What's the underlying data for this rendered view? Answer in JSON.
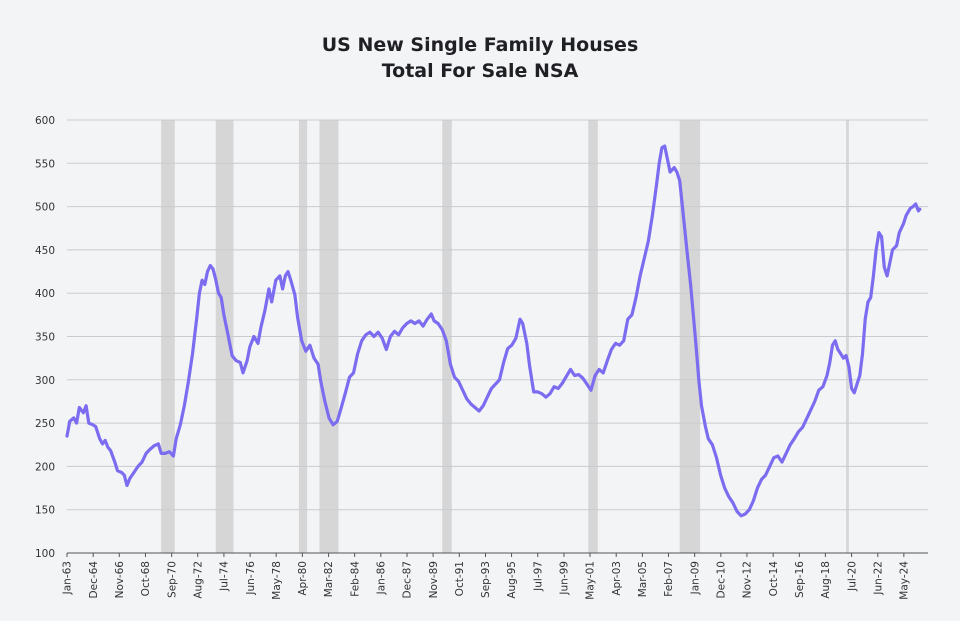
{
  "chart_data": {
    "type": "line",
    "title": [
      "US New Single Family Houses",
      "Total For Sale NSA"
    ],
    "xlabel": "",
    "ylabel": "",
    "ylim": [
      100,
      600
    ],
    "yticks": [
      100,
      150,
      200,
      250,
      300,
      350,
      400,
      450,
      500,
      550,
      600
    ],
    "xlim": [
      1963.0,
      2026.1
    ],
    "xticks": [
      {
        "label": "Jan-63",
        "t": 1963.0
      },
      {
        "label": "Dec-64",
        "t": 1964.92
      },
      {
        "label": "Nov-66",
        "t": 1966.83
      },
      {
        "label": "Oct-68",
        "t": 1968.75
      },
      {
        "label": "Sep-70",
        "t": 1970.67
      },
      {
        "label": "Aug-72",
        "t": 1972.58
      },
      {
        "label": "Jul-74",
        "t": 1974.5
      },
      {
        "label": "Jun-76",
        "t": 1976.42
      },
      {
        "label": "May-78",
        "t": 1978.33
      },
      {
        "label": "Apr-80",
        "t": 1980.25
      },
      {
        "label": "Mar-82",
        "t": 1982.17
      },
      {
        "label": "Feb-84",
        "t": 1984.08
      },
      {
        "label": "Jan-86",
        "t": 1986.0
      },
      {
        "label": "Dec-87",
        "t": 1987.92
      },
      {
        "label": "Nov-89",
        "t": 1989.83
      },
      {
        "label": "Oct-91",
        "t": 1991.75
      },
      {
        "label": "Sep-93",
        "t": 1993.67
      },
      {
        "label": "Aug-95",
        "t": 1995.58
      },
      {
        "label": "Jul-97",
        "t": 1997.5
      },
      {
        "label": "Jun-99",
        "t": 1999.42
      },
      {
        "label": "May-01",
        "t": 2001.33
      },
      {
        "label": "Apr-03",
        "t": 2003.25
      },
      {
        "label": "Mar-05",
        "t": 2005.17
      },
      {
        "label": "Feb-07",
        "t": 2007.08
      },
      {
        "label": "Jan-09",
        "t": 2009.0
      },
      {
        "label": "Dec-10",
        "t": 2010.92
      },
      {
        "label": "Nov-12",
        "t": 2012.83
      },
      {
        "label": "Oct-14",
        "t": 2014.75
      },
      {
        "label": "Sep-16",
        "t": 2016.67
      },
      {
        "label": "Aug-18",
        "t": 2018.58
      },
      {
        "label": "Jul-20",
        "t": 2020.5
      },
      {
        "label": "Jun-22",
        "t": 2022.42
      },
      {
        "label": "May-24",
        "t": 2024.33
      }
    ],
    "recessions": [
      [
        1969.9,
        1970.9
      ],
      [
        1973.9,
        1975.2
      ],
      [
        1980.0,
        1980.6
      ],
      [
        1981.5,
        1982.9
      ],
      [
        1990.5,
        1991.2
      ],
      [
        2001.2,
        2001.9
      ],
      [
        2007.9,
        2009.4
      ],
      [
        2020.1,
        2020.3
      ]
    ],
    "grid": true,
    "legend": "none",
    "series": [
      {
        "color": "#7b6cf0",
        "points": [
          [
            1963.0,
            235
          ],
          [
            1963.2,
            252
          ],
          [
            1963.5,
            256
          ],
          [
            1963.7,
            250
          ],
          [
            1963.9,
            268
          ],
          [
            1964.2,
            262
          ],
          [
            1964.4,
            270
          ],
          [
            1964.6,
            250
          ],
          [
            1964.9,
            248
          ],
          [
            1965.1,
            246
          ],
          [
            1965.4,
            232
          ],
          [
            1965.6,
            226
          ],
          [
            1965.8,
            230
          ],
          [
            1966.0,
            222
          ],
          [
            1966.2,
            218
          ],
          [
            1966.5,
            205
          ],
          [
            1966.7,
            195
          ],
          [
            1967.0,
            193
          ],
          [
            1967.2,
            190
          ],
          [
            1967.4,
            178
          ],
          [
            1967.6,
            186
          ],
          [
            1967.9,
            193
          ],
          [
            1968.2,
            200
          ],
          [
            1968.5,
            205
          ],
          [
            1968.8,
            215
          ],
          [
            1969.1,
            220
          ],
          [
            1969.4,
            224
          ],
          [
            1969.7,
            226
          ],
          [
            1969.9,
            215
          ],
          [
            1970.2,
            215
          ],
          [
            1970.5,
            217
          ],
          [
            1970.8,
            212
          ],
          [
            1971.0,
            232
          ],
          [
            1971.3,
            248
          ],
          [
            1971.6,
            270
          ],
          [
            1971.9,
            298
          ],
          [
            1972.2,
            330
          ],
          [
            1972.5,
            370
          ],
          [
            1972.7,
            400
          ],
          [
            1972.9,
            415
          ],
          [
            1973.1,
            410
          ],
          [
            1973.3,
            425
          ],
          [
            1973.5,
            432
          ],
          [
            1973.7,
            428
          ],
          [
            1973.9,
            416
          ],
          [
            1974.1,
            400
          ],
          [
            1974.3,
            395
          ],
          [
            1974.5,
            375
          ],
          [
            1974.8,
            352
          ],
          [
            1975.1,
            328
          ],
          [
            1975.4,
            322
          ],
          [
            1975.7,
            320
          ],
          [
            1975.9,
            308
          ],
          [
            1976.2,
            322
          ],
          [
            1976.4,
            338
          ],
          [
            1976.7,
            350
          ],
          [
            1977.0,
            342
          ],
          [
            1977.2,
            360
          ],
          [
            1977.5,
            380
          ],
          [
            1977.8,
            405
          ],
          [
            1978.0,
            390
          ],
          [
            1978.3,
            415
          ],
          [
            1978.6,
            420
          ],
          [
            1978.8,
            405
          ],
          [
            1979.0,
            420
          ],
          [
            1979.2,
            425
          ],
          [
            1979.4,
            415
          ],
          [
            1979.7,
            398
          ],
          [
            1979.9,
            372
          ],
          [
            1980.2,
            345
          ],
          [
            1980.5,
            333
          ],
          [
            1980.8,
            340
          ],
          [
            1981.1,
            325
          ],
          [
            1981.4,
            318
          ],
          [
            1981.6,
            298
          ],
          [
            1981.9,
            275
          ],
          [
            1982.2,
            256
          ],
          [
            1982.5,
            248
          ],
          [
            1982.8,
            252
          ],
          [
            1983.1,
            268
          ],
          [
            1983.4,
            285
          ],
          [
            1983.7,
            303
          ],
          [
            1984.0,
            308
          ],
          [
            1984.3,
            330
          ],
          [
            1984.6,
            345
          ],
          [
            1984.9,
            352
          ],
          [
            1985.2,
            355
          ],
          [
            1985.5,
            350
          ],
          [
            1985.8,
            355
          ],
          [
            1986.1,
            348
          ],
          [
            1986.4,
            335
          ],
          [
            1986.7,
            350
          ],
          [
            1987.0,
            356
          ],
          [
            1987.3,
            352
          ],
          [
            1987.6,
            360
          ],
          [
            1987.9,
            365
          ],
          [
            1988.2,
            368
          ],
          [
            1988.5,
            365
          ],
          [
            1988.8,
            368
          ],
          [
            1989.1,
            362
          ],
          [
            1989.4,
            370
          ],
          [
            1989.7,
            376
          ],
          [
            1989.9,
            368
          ],
          [
            1990.2,
            365
          ],
          [
            1990.5,
            358
          ],
          [
            1990.8,
            345
          ],
          [
            1991.1,
            318
          ],
          [
            1991.4,
            303
          ],
          [
            1991.7,
            298
          ],
          [
            1992.0,
            288
          ],
          [
            1992.3,
            278
          ],
          [
            1992.6,
            272
          ],
          [
            1992.9,
            268
          ],
          [
            1993.2,
            264
          ],
          [
            1993.5,
            270
          ],
          [
            1993.8,
            280
          ],
          [
            1994.1,
            290
          ],
          [
            1994.4,
            295
          ],
          [
            1994.7,
            300
          ],
          [
            1995.0,
            320
          ],
          [
            1995.3,
            336
          ],
          [
            1995.6,
            340
          ],
          [
            1995.9,
            348
          ],
          [
            1996.2,
            370
          ],
          [
            1996.4,
            365
          ],
          [
            1996.7,
            342
          ],
          [
            1996.9,
            316
          ],
          [
            1997.2,
            286
          ],
          [
            1997.5,
            286
          ],
          [
            1997.8,
            284
          ],
          [
            1998.1,
            280
          ],
          [
            1998.4,
            284
          ],
          [
            1998.7,
            292
          ],
          [
            1999.0,
            290
          ],
          [
            1999.3,
            296
          ],
          [
            1999.6,
            304
          ],
          [
            1999.9,
            312
          ],
          [
            2000.2,
            305
          ],
          [
            2000.5,
            306
          ],
          [
            2000.8,
            302
          ],
          [
            2001.1,
            295
          ],
          [
            2001.4,
            288
          ],
          [
            2001.7,
            305
          ],
          [
            2002.0,
            312
          ],
          [
            2002.3,
            308
          ],
          [
            2002.6,
            322
          ],
          [
            2002.9,
            335
          ],
          [
            2003.2,
            342
          ],
          [
            2003.5,
            340
          ],
          [
            2003.8,
            345
          ],
          [
            2004.1,
            370
          ],
          [
            2004.4,
            375
          ],
          [
            2004.7,
            395
          ],
          [
            2005.0,
            420
          ],
          [
            2005.3,
            440
          ],
          [
            2005.6,
            460
          ],
          [
            2005.9,
            490
          ],
          [
            2006.2,
            525
          ],
          [
            2006.4,
            550
          ],
          [
            2006.6,
            568
          ],
          [
            2006.8,
            570
          ],
          [
            2007.0,
            555
          ],
          [
            2007.2,
            540
          ],
          [
            2007.5,
            545
          ],
          [
            2007.7,
            540
          ],
          [
            2007.9,
            530
          ],
          [
            2008.1,
            500
          ],
          [
            2008.3,
            470
          ],
          [
            2008.5,
            440
          ],
          [
            2008.7,
            410
          ],
          [
            2008.9,
            375
          ],
          [
            2009.1,
            340
          ],
          [
            2009.3,
            300
          ],
          [
            2009.5,
            270
          ],
          [
            2009.8,
            245
          ],
          [
            2010.0,
            232
          ],
          [
            2010.3,
            225
          ],
          [
            2010.6,
            210
          ],
          [
            2010.9,
            190
          ],
          [
            2011.2,
            175
          ],
          [
            2011.5,
            165
          ],
          [
            2011.8,
            158
          ],
          [
            2012.1,
            148
          ],
          [
            2012.4,
            143
          ],
          [
            2012.7,
            145
          ],
          [
            2013.0,
            150
          ],
          [
            2013.3,
            160
          ],
          [
            2013.6,
            175
          ],
          [
            2013.9,
            185
          ],
          [
            2014.2,
            190
          ],
          [
            2014.5,
            200
          ],
          [
            2014.8,
            210
          ],
          [
            2015.1,
            212
          ],
          [
            2015.4,
            205
          ],
          [
            2015.7,
            215
          ],
          [
            2016.0,
            225
          ],
          [
            2016.3,
            232
          ],
          [
            2016.6,
            240
          ],
          [
            2016.9,
            245
          ],
          [
            2017.2,
            255
          ],
          [
            2017.5,
            265
          ],
          [
            2017.8,
            275
          ],
          [
            2018.1,
            288
          ],
          [
            2018.4,
            292
          ],
          [
            2018.7,
            305
          ],
          [
            2018.9,
            320
          ],
          [
            2019.1,
            340
          ],
          [
            2019.3,
            345
          ],
          [
            2019.5,
            335
          ],
          [
            2019.7,
            330
          ],
          [
            2019.9,
            325
          ],
          [
            2020.1,
            328
          ],
          [
            2020.3,
            315
          ],
          [
            2020.5,
            290
          ],
          [
            2020.7,
            285
          ],
          [
            2020.9,
            295
          ],
          [
            2021.1,
            305
          ],
          [
            2021.3,
            330
          ],
          [
            2021.5,
            370
          ],
          [
            2021.7,
            390
          ],
          [
            2021.9,
            395
          ],
          [
            2022.1,
            420
          ],
          [
            2022.3,
            450
          ],
          [
            2022.5,
            470
          ],
          [
            2022.7,
            465
          ],
          [
            2022.9,
            430
          ],
          [
            2023.1,
            420
          ],
          [
            2023.3,
            435
          ],
          [
            2023.5,
            450
          ],
          [
            2023.8,
            455
          ],
          [
            2024.0,
            470
          ],
          [
            2024.3,
            480
          ],
          [
            2024.5,
            490
          ],
          [
            2024.8,
            498
          ],
          [
            2025.0,
            500
          ],
          [
            2025.2,
            503
          ],
          [
            2025.4,
            495
          ],
          [
            2025.5,
            497
          ]
        ]
      }
    ]
  }
}
